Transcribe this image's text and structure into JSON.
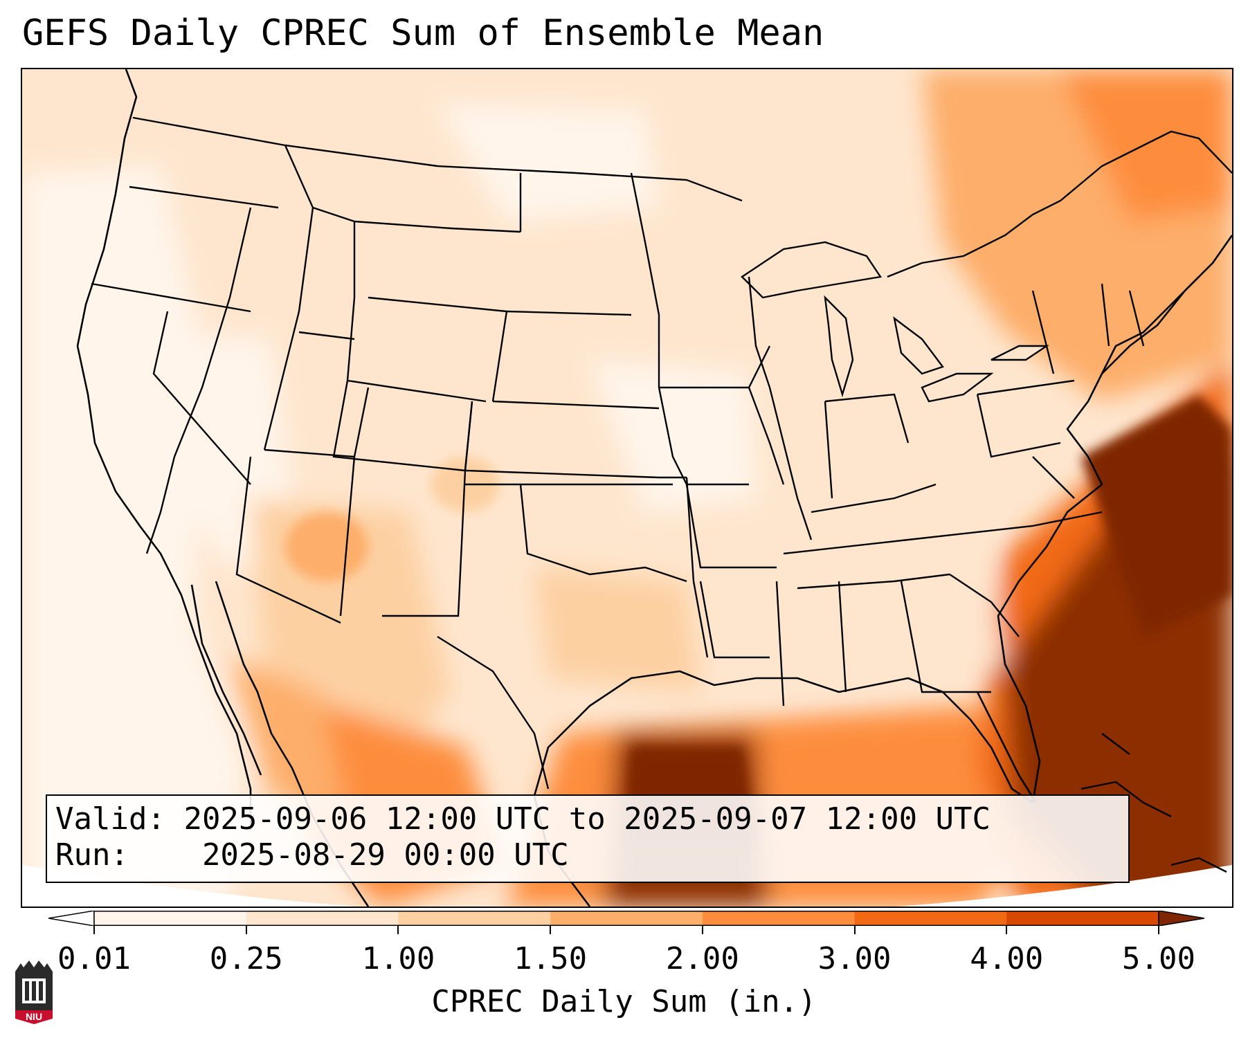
{
  "title": "GEFS Daily CPREC Sum of Ensemble Mean",
  "info": {
    "valid_label": "Valid:",
    "valid_value": "2025-09-06 12:00 UTC to 2025-09-07 12:00 UTC",
    "run_label": "Run:",
    "run_value": "2025-08-29 00:00 UTC"
  },
  "colorbar": {
    "label": "CPREC Daily Sum (in.)",
    "ticks": [
      "0.01",
      "0.25",
      "1.00",
      "1.50",
      "2.00",
      "3.00",
      "4.00",
      "5.00"
    ],
    "colors": [
      "#fff5eb",
      "#fee6ce",
      "#fdd0a2",
      "#fdae6b",
      "#fd8d3c",
      "#f16913",
      "#d94801",
      "#8c2d04"
    ],
    "under_color": "#ffffff",
    "over_color": "#7f2704"
  },
  "map": {
    "region": "CONUS",
    "heavy_areas": [
      "Gulf of Mexico off Texas/Louisiana",
      "Western Atlantic off the Southeast coast",
      "Northeast Canada / New England"
    ]
  },
  "logo": {
    "text": "NIU",
    "icon": "university-logo-icon"
  }
}
